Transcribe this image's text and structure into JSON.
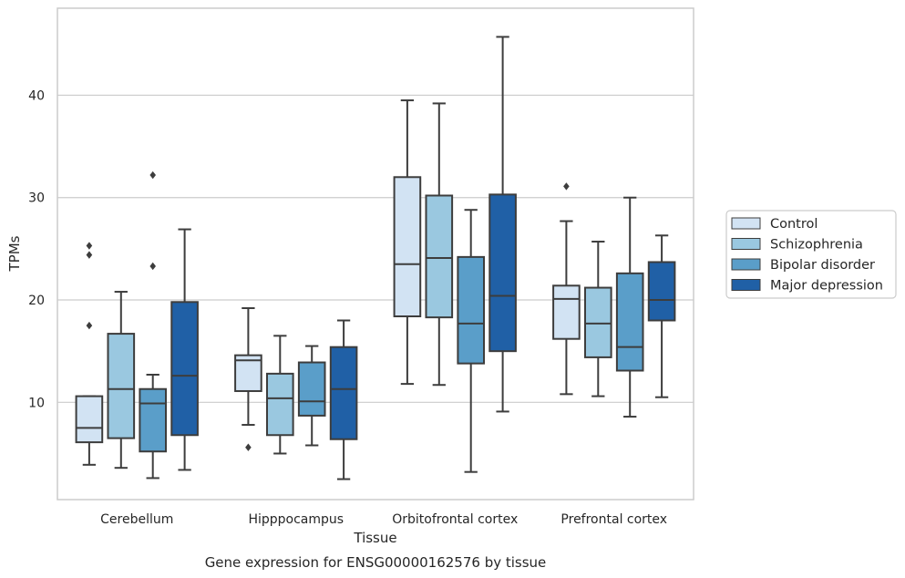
{
  "chart_data": {
    "type": "box",
    "xlabel": "Tissue",
    "ylabel": "TPMs",
    "caption": "Gene expression for ENSG00000162576 by tissue",
    "categories": [
      "Cerebellum",
      "Hipppocampus",
      "Orbitofrontal cortex",
      "Prefrontal cortex"
    ],
    "ylim": [
      0.5,
      48.5
    ],
    "yticks": [
      10,
      20,
      30,
      40
    ],
    "grid": true,
    "legend_position": "right",
    "series": [
      {
        "name": "Control",
        "color": "#d2e3f3",
        "boxes": [
          {
            "whislo": 3.9,
            "q1": 6.1,
            "med": 7.5,
            "q3": 10.6,
            "whishi": 10.6,
            "fliers": [
              17.5,
              24.4,
              25.3
            ]
          },
          {
            "whislo": 7.8,
            "q1": 11.1,
            "med": 14.1,
            "q3": 14.6,
            "whishi": 19.2,
            "fliers": [
              5.6
            ]
          },
          {
            "whislo": 11.8,
            "q1": 18.4,
            "med": 23.5,
            "q3": 32.0,
            "whishi": 39.5,
            "fliers": []
          },
          {
            "whislo": 10.8,
            "q1": 16.2,
            "med": 20.1,
            "q3": 21.4,
            "whishi": 27.7,
            "fliers": [
              31.1
            ]
          }
        ]
      },
      {
        "name": "Schizophrenia",
        "color": "#9ac8e0",
        "boxes": [
          {
            "whislo": 3.6,
            "q1": 6.5,
            "med": 11.3,
            "q3": 16.7,
            "whishi": 20.8,
            "fliers": []
          },
          {
            "whislo": 5.0,
            "q1": 6.8,
            "med": 10.4,
            "q3": 12.8,
            "whishi": 16.5,
            "fliers": []
          },
          {
            "whislo": 11.7,
            "q1": 18.3,
            "med": 24.1,
            "q3": 30.2,
            "whishi": 39.2,
            "fliers": []
          },
          {
            "whislo": 10.6,
            "q1": 14.4,
            "med": 17.7,
            "q3": 21.2,
            "whishi": 25.7,
            "fliers": []
          }
        ]
      },
      {
        "name": "Bipolar disorder",
        "color": "#5a9ec9",
        "boxes": [
          {
            "whislo": 2.6,
            "q1": 5.2,
            "med": 9.9,
            "q3": 11.3,
            "whishi": 12.7,
            "fliers": [
              23.3,
              32.2
            ]
          },
          {
            "whislo": 5.8,
            "q1": 8.7,
            "med": 10.1,
            "q3": 13.9,
            "whishi": 15.5,
            "fliers": []
          },
          {
            "whislo": 3.2,
            "q1": 13.8,
            "med": 17.7,
            "q3": 24.2,
            "whishi": 28.8,
            "fliers": []
          },
          {
            "whislo": 8.6,
            "q1": 13.1,
            "med": 15.4,
            "q3": 22.6,
            "whishi": 30.0,
            "fliers": []
          }
        ]
      },
      {
        "name": "Major depression",
        "color": "#2060a6",
        "boxes": [
          {
            "whislo": 3.4,
            "q1": 6.8,
            "med": 12.6,
            "q3": 19.8,
            "whishi": 26.9,
            "fliers": []
          },
          {
            "whislo": 2.5,
            "q1": 6.4,
            "med": 11.3,
            "q3": 15.4,
            "whishi": 18.0,
            "fliers": []
          },
          {
            "whislo": 9.1,
            "q1": 15.0,
            "med": 20.4,
            "q3": 30.3,
            "whishi": 45.7,
            "fliers": []
          },
          {
            "whislo": 10.5,
            "q1": 18.0,
            "med": 20.0,
            "q3": 23.7,
            "whishi": 26.3,
            "fliers": []
          }
        ]
      }
    ]
  }
}
